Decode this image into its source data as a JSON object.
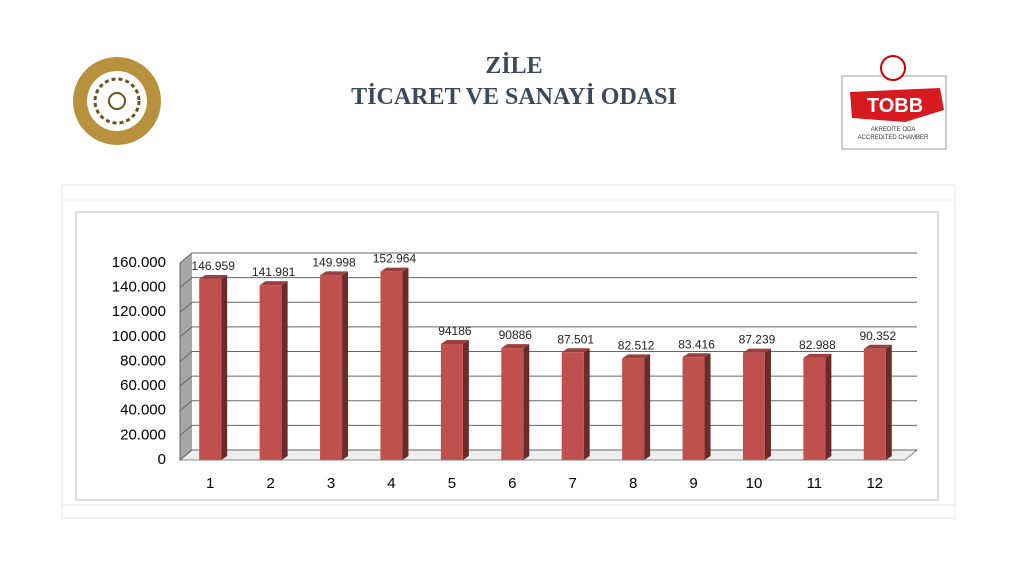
{
  "header": {
    "title": "ZİLE",
    "subtitle": "TİCARET VE SANAYİ ODASI"
  },
  "logo": {
    "name": "TOBB",
    "line1": "AKREDİTE ODA",
    "line2": "ACCREDITED CHAMBER"
  },
  "chart_data": {
    "type": "bar3d",
    "categories": [
      "1",
      "2",
      "3",
      "4",
      "5",
      "6",
      "7",
      "8",
      "9",
      "10",
      "11",
      "12"
    ],
    "values": [
      146959,
      141981,
      149998,
      152964,
      94186,
      90886,
      87501,
      82512,
      83416,
      87239,
      82988,
      90352
    ],
    "value_labels": [
      "146.959",
      "141.981",
      "149.998",
      "152.964",
      "94186",
      "90886",
      "87.501",
      "82.512",
      "83.416",
      "87.239",
      "82.988",
      "90.352"
    ],
    "color": "#c0504d",
    "ylim": [
      0,
      160000
    ],
    "yticks": [
      0,
      {
        "value": 20000,
        "label": "20.000"
      },
      {
        "value": 40000,
        "label": "40.000"
      },
      {
        "value": 60000,
        "label": "60.000"
      },
      {
        "value": 80000,
        "label": "80.000"
      },
      {
        "value": 100000,
        "label": "100.000"
      },
      {
        "value": 120000,
        "label": "120.000"
      },
      {
        "value": 140000,
        "label": "140.000"
      },
      {
        "value": 160000,
        "label": "160.000"
      }
    ],
    "grid": true
  }
}
